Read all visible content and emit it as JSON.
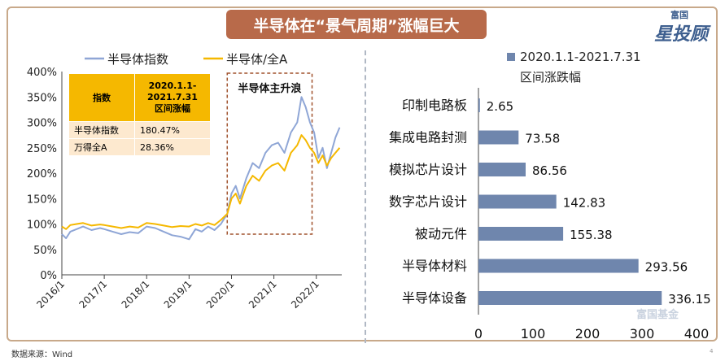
{
  "title": "半导体在“景气周期”涨幅巨大",
  "logo": {
    "top": "富国",
    "main": "星投顾"
  },
  "source": "数据来源：Wind",
  "page_number": "4",
  "watermark": "富国基金",
  "colors": {
    "index_line": "#8fa6d6",
    "ratio_line": "#f5b800",
    "bar": "#6f86ad",
    "banner": "#b86a4a",
    "box": "#a0522d"
  },
  "table": {
    "header_col1": "指数",
    "header_col2_lines": [
      "2020.1.1-",
      "2021.7.31",
      "区间涨幅"
    ],
    "rows": [
      {
        "name": "半导体指数",
        "value": "180.47%"
      },
      {
        "name": "万得全A",
        "value": "28.36%"
      }
    ]
  },
  "chart_data": [
    {
      "type": "line",
      "legend": [
        "半导体指数",
        "半导体/全A"
      ],
      "annotation": "半导体主升浪",
      "yticks": [
        "0%",
        "50%",
        "100%",
        "150%",
        "200%",
        "250%",
        "300%",
        "350%",
        "400%"
      ],
      "ylim": [
        0,
        400
      ],
      "xticks": [
        "2016/1",
        "2017/1",
        "2018/1",
        "2019/1",
        "2020/1",
        "2021/1",
        "2022/1"
      ],
      "xlim": [
        2016.0,
        2022.6
      ],
      "highlight_range": [
        2019.9,
        2021.9
      ],
      "series": [
        {
          "name": "半导体指数",
          "x": [
            2016.0,
            2016.1,
            2016.2,
            2016.35,
            2016.5,
            2016.7,
            2016.9,
            2017.0,
            2017.2,
            2017.4,
            2017.6,
            2017.8,
            2018.0,
            2018.2,
            2018.4,
            2018.6,
            2018.8,
            2019.0,
            2019.15,
            2019.3,
            2019.45,
            2019.6,
            2019.75,
            2019.9,
            2020.0,
            2020.1,
            2020.2,
            2020.35,
            2020.5,
            2020.65,
            2020.8,
            2020.95,
            2021.1,
            2021.25,
            2021.4,
            2021.55,
            2021.65,
            2021.75,
            2021.85,
            2021.95,
            2022.05,
            2022.15,
            2022.25,
            2022.35,
            2022.45,
            2022.55
          ],
          "y": [
            80,
            72,
            85,
            90,
            95,
            88,
            92,
            90,
            85,
            80,
            84,
            82,
            95,
            92,
            85,
            78,
            75,
            70,
            90,
            85,
            95,
            88,
            100,
            120,
            160,
            175,
            150,
            190,
            220,
            210,
            240,
            255,
            260,
            240,
            280,
            300,
            350,
            330,
            300,
            280,
            230,
            250,
            210,
            240,
            270,
            290
          ]
        },
        {
          "name": "半导体/全A",
          "x": [
            2016.0,
            2016.1,
            2016.2,
            2016.35,
            2016.5,
            2016.7,
            2016.9,
            2017.0,
            2017.2,
            2017.4,
            2017.6,
            2017.8,
            2018.0,
            2018.2,
            2018.4,
            2018.6,
            2018.8,
            2019.0,
            2019.15,
            2019.3,
            2019.45,
            2019.6,
            2019.75,
            2019.9,
            2020.0,
            2020.1,
            2020.2,
            2020.35,
            2020.5,
            2020.65,
            2020.8,
            2020.95,
            2021.1,
            2021.25,
            2021.4,
            2021.55,
            2021.65,
            2021.75,
            2021.85,
            2021.95,
            2022.05,
            2022.15,
            2022.25,
            2022.35,
            2022.45,
            2022.55
          ],
          "y": [
            95,
            90,
            98,
            100,
            102,
            97,
            99,
            98,
            95,
            92,
            95,
            93,
            102,
            100,
            97,
            94,
            96,
            95,
            100,
            97,
            102,
            98,
            108,
            120,
            150,
            160,
            140,
            175,
            195,
            185,
            205,
            215,
            220,
            205,
            240,
            255,
            275,
            265,
            250,
            240,
            220,
            235,
            215,
            230,
            240,
            250
          ]
        }
      ]
    },
    {
      "type": "bar",
      "orientation": "horizontal",
      "legend": [
        "2020.1.1-2021.7.31",
        "区间涨跌幅"
      ],
      "categories": [
        "印制电路板",
        "集成电路封测",
        "模拟芯片设计",
        "数字芯片设计",
        "被动元件",
        "半导体材料",
        "半导体设备"
      ],
      "values": [
        2.65,
        73.58,
        86.56,
        142.83,
        155.38,
        293.56,
        336.15
      ],
      "value_labels": [
        "2.65",
        "73.58",
        "86.56",
        "142.83",
        "155.38",
        "293.56",
        "336.15"
      ],
      "xticks": [
        "0",
        "100",
        "200",
        "300",
        "400"
      ],
      "xlim": [
        0,
        400
      ]
    }
  ]
}
